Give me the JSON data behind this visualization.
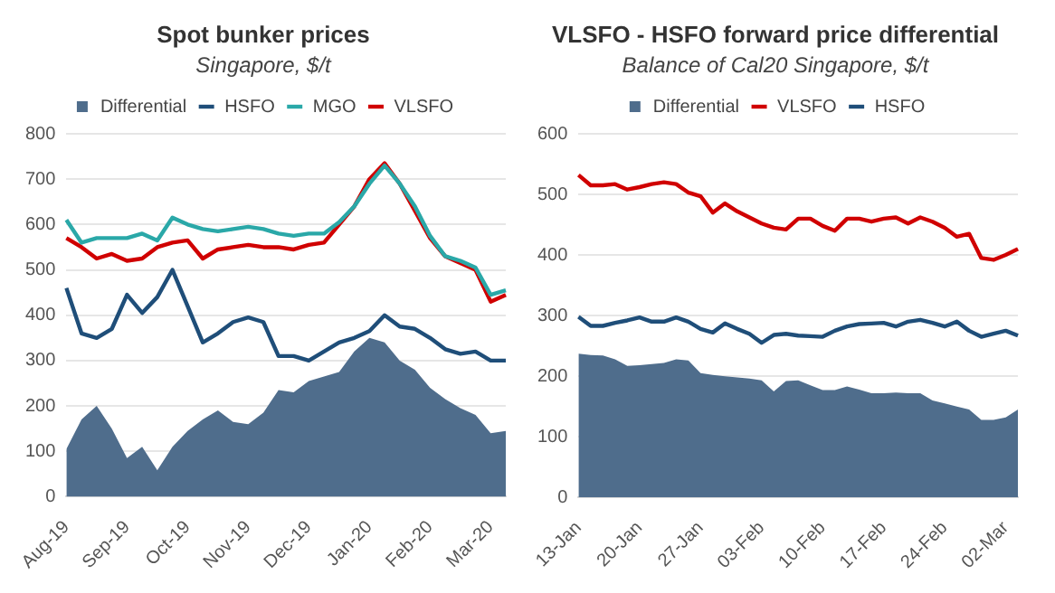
{
  "chart_data": [
    {
      "type": "line",
      "title": "Spot bunker prices",
      "subtitle": "Singapore, $/t",
      "categories": [
        "Aug-19",
        null,
        null,
        null,
        "Sep-19",
        null,
        null,
        null,
        "Oct-19",
        null,
        null,
        null,
        "Nov-19",
        null,
        null,
        null,
        "Dec-19",
        null,
        null,
        null,
        "Jan-20",
        null,
        null,
        null,
        "Feb-20",
        null,
        null,
        null,
        "Mar-20",
        null
      ],
      "series": [
        {
          "name": "Differential",
          "type": "area",
          "color": "#4f6d8c",
          "values": [
            105,
            170,
            200,
            150,
            85,
            110,
            58,
            110,
            145,
            170,
            190,
            165,
            160,
            185,
            235,
            230,
            255,
            265,
            275,
            320,
            350,
            340,
            300,
            280,
            240,
            215,
            195,
            180,
            140,
            145
          ]
        },
        {
          "name": "HSFO",
          "type": "line",
          "color": "#1f4e79",
          "values": [
            460,
            360,
            350,
            370,
            445,
            405,
            440,
            500,
            420,
            340,
            360,
            385,
            395,
            385,
            310,
            310,
            300,
            320,
            340,
            350,
            365,
            400,
            375,
            370,
            350,
            325,
            315,
            320,
            300,
            300
          ]
        },
        {
          "name": "MGO",
          "type": "line",
          "color": "#2aa8a8",
          "values": [
            610,
            560,
            570,
            570,
            570,
            580,
            565,
            615,
            600,
            590,
            585,
            590,
            595,
            590,
            580,
            575,
            580,
            580,
            605,
            640,
            690,
            730,
            690,
            640,
            575,
            530,
            520,
            505,
            445,
            455
          ]
        },
        {
          "name": "VLSFO",
          "type": "line",
          "color": "#d00000",
          "values": [
            570,
            550,
            525,
            535,
            520,
            525,
            550,
            560,
            565,
            525,
            545,
            550,
            555,
            550,
            550,
            545,
            555,
            560,
            600,
            640,
            700,
            735,
            690,
            630,
            570,
            530,
            515,
            500,
            430,
            445
          ]
        }
      ],
      "ylim": [
        0,
        800
      ],
      "yticks": [
        0,
        100,
        200,
        300,
        400,
        500,
        600,
        700,
        800
      ],
      "grid": "y",
      "legend": "top",
      "marker": "none"
    },
    {
      "type": "line",
      "title": "VLSFO - HSFO forward price differential",
      "subtitle": "Balance of Cal20 Singapore, $/t",
      "categories": [
        "13-Jan",
        null,
        null,
        null,
        null,
        "20-Jan",
        null,
        null,
        null,
        null,
        "27-Jan",
        null,
        null,
        null,
        null,
        "03-Feb",
        null,
        null,
        null,
        null,
        "10-Feb",
        null,
        null,
        null,
        null,
        "17-Feb",
        null,
        null,
        null,
        null,
        "24-Feb",
        null,
        null,
        null,
        null,
        "02-Mar",
        null
      ],
      "series": [
        {
          "name": "Differential",
          "type": "area",
          "color": "#4f6d8c",
          "values": [
            237,
            235,
            234,
            228,
            217,
            218,
            220,
            222,
            228,
            226,
            205,
            202,
            200,
            198,
            196,
            193,
            175,
            192,
            193,
            185,
            177,
            177,
            183,
            178,
            172,
            172,
            173,
            172,
            172,
            160,
            155,
            150,
            145,
            128,
            128,
            132,
            145
          ]
        },
        {
          "name": "VLSFO",
          "type": "line",
          "color": "#d00000",
          "values": [
            532,
            515,
            515,
            517,
            508,
            512,
            517,
            520,
            517,
            503,
            497,
            470,
            485,
            472,
            462,
            452,
            445,
            442,
            460,
            460,
            448,
            440,
            460,
            460,
            455,
            460,
            462,
            452,
            462,
            455,
            445,
            430,
            435,
            395,
            392,
            400,
            410
          ]
        },
        {
          "name": "HSFO",
          "type": "line",
          "color": "#1f4e79",
          "values": [
            298,
            283,
            283,
            288,
            292,
            297,
            290,
            290,
            297,
            290,
            278,
            272,
            287,
            278,
            270,
            255,
            268,
            270,
            267,
            266,
            265,
            275,
            282,
            286,
            287,
            288,
            282,
            290,
            293,
            288,
            282,
            290,
            275,
            265,
            270,
            275,
            267
          ]
        }
      ],
      "ylim": [
        0,
        600
      ],
      "yticks": [
        0,
        100,
        200,
        300,
        400,
        500,
        600
      ],
      "grid": "y",
      "legend": "top",
      "marker": "none"
    }
  ]
}
